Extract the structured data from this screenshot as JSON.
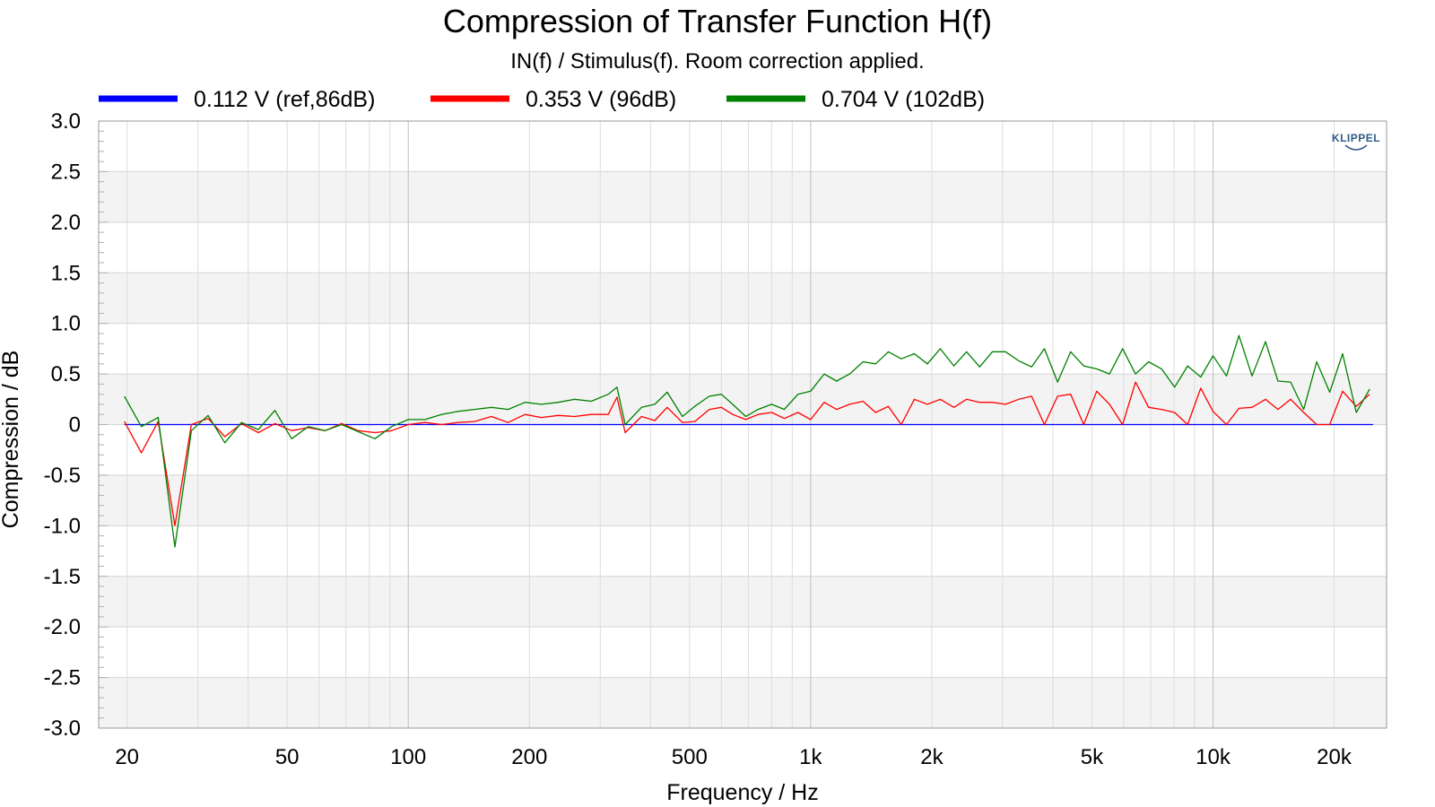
{
  "chart_data": {
    "type": "line",
    "title": "Compression of Transfer Function H(f)",
    "subtitle": "IN(f) / Stimulus(f). Room correction applied.",
    "xlabel": "Frequency / Hz",
    "ylabel": "Compression / dB",
    "xscale": "log",
    "xlim": [
      17,
      27000
    ],
    "ylim": [
      -3.0,
      3.0
    ],
    "grid": true,
    "legend_position": "top",
    "logo": "KLIPPEL",
    "x_ticks": [
      20,
      50,
      100,
      200,
      500,
      1000,
      2000,
      5000,
      10000,
      20000
    ],
    "x_tick_labels": [
      "20",
      "50",
      "100",
      "200",
      "500",
      "1k",
      "2k",
      "5k",
      "10k",
      "20k"
    ],
    "y_ticks": [
      3.0,
      2.5,
      2.0,
      1.5,
      1.0,
      0.5,
      0,
      -0.5,
      -1.0,
      -1.5,
      -2.0,
      -2.5,
      -3.0
    ],
    "y_tick_labels": [
      "3.0",
      "2.5",
      "2.0",
      "1.5",
      "1.0",
      "0.5",
      "0",
      "-0.5",
      "-1.0",
      "-1.5",
      "-2.0",
      "-2.5",
      "-3.0"
    ],
    "series": [
      {
        "name": "0.112 V (ref,86dB)",
        "color": "#0000ff",
        "x": [
          19.7,
          25000
        ],
        "y": [
          0,
          0
        ]
      },
      {
        "name": "0.353 V (96dB)",
        "color": "#ff0000",
        "x": [
          19.7,
          21.7,
          23.9,
          26.3,
          28.9,
          31.8,
          35.0,
          38.5,
          42.4,
          46.6,
          51.3,
          56.4,
          62.1,
          68.3,
          75.1,
          82.6,
          90.9,
          100,
          110,
          121,
          133,
          146,
          161,
          177,
          195,
          214,
          236,
          259,
          285,
          314,
          330,
          346,
          380,
          410,
          440,
          480,
          515,
          560,
          600,
          640,
          690,
          740,
          800,
          860,
          930,
          1000,
          1080,
          1160,
          1250,
          1350,
          1450,
          1560,
          1680,
          1810,
          1950,
          2100,
          2270,
          2440,
          2630,
          2830,
          3050,
          3290,
          3540,
          3810,
          4110,
          4430,
          4770,
          5140,
          5530,
          5960,
          6420,
          6920,
          7450,
          8030,
          8650,
          9320,
          10000,
          10800,
          11600,
          12500,
          13500,
          14500,
          15600,
          16800,
          18100,
          19500,
          21000,
          22700,
          24500
        ],
        "y": [
          0.03,
          -0.28,
          0.03,
          -1.0,
          0.0,
          0.06,
          -0.12,
          0.01,
          -0.08,
          0.01,
          -0.06,
          -0.03,
          -0.06,
          0.01,
          -0.06,
          -0.08,
          -0.06,
          0.0,
          0.02,
          0.0,
          0.02,
          0.03,
          0.08,
          0.02,
          0.1,
          0.07,
          0.09,
          0.08,
          0.1,
          0.1,
          0.27,
          -0.08,
          0.08,
          0.04,
          0.17,
          0.02,
          0.03,
          0.15,
          0.17,
          0.1,
          0.05,
          0.1,
          0.12,
          0.06,
          0.12,
          0.05,
          0.22,
          0.15,
          0.2,
          0.23,
          0.12,
          0.18,
          0.0,
          0.25,
          0.2,
          0.25,
          0.17,
          0.25,
          0.22,
          0.22,
          0.2,
          0.25,
          0.28,
          0.0,
          0.28,
          0.3,
          0.0,
          0.33,
          0.2,
          0.0,
          0.42,
          0.17,
          0.15,
          0.12,
          0.0,
          0.36,
          0.13,
          0.0,
          0.16,
          0.17,
          0.25,
          0.15,
          0.25,
          0.12,
          0.0,
          0.0,
          0.33,
          0.18,
          0.3
        ]
      },
      {
        "name": "0.704 V (102dB)",
        "color": "#008000",
        "x": [
          19.7,
          21.7,
          23.9,
          26.3,
          28.9,
          31.8,
          35.0,
          38.5,
          42.4,
          46.6,
          51.3,
          56.4,
          62.1,
          68.3,
          75.1,
          82.6,
          90.9,
          100,
          110,
          121,
          133,
          146,
          161,
          177,
          195,
          214,
          236,
          259,
          285,
          314,
          330,
          346,
          380,
          410,
          440,
          480,
          515,
          560,
          600,
          640,
          690,
          740,
          800,
          860,
          930,
          1000,
          1080,
          1160,
          1250,
          1350,
          1450,
          1560,
          1680,
          1810,
          1950,
          2100,
          2270,
          2440,
          2630,
          2830,
          3050,
          3290,
          3540,
          3810,
          4110,
          4430,
          4770,
          5140,
          5530,
          5960,
          6420,
          6920,
          7450,
          8030,
          8650,
          9320,
          10000,
          10800,
          11600,
          12500,
          13500,
          14500,
          15600,
          16800,
          18100,
          19500,
          21000,
          22700,
          24500
        ],
        "y": [
          0.28,
          -0.02,
          0.07,
          -1.21,
          -0.06,
          0.09,
          -0.18,
          0.02,
          -0.05,
          0.14,
          -0.14,
          -0.02,
          -0.06,
          0.0,
          -0.07,
          -0.14,
          -0.02,
          0.05,
          0.05,
          0.1,
          0.13,
          0.15,
          0.17,
          0.15,
          0.22,
          0.2,
          0.22,
          0.25,
          0.23,
          0.3,
          0.37,
          0.0,
          0.17,
          0.2,
          0.32,
          0.08,
          0.18,
          0.28,
          0.3,
          0.2,
          0.08,
          0.15,
          0.2,
          0.15,
          0.3,
          0.33,
          0.5,
          0.43,
          0.5,
          0.62,
          0.6,
          0.72,
          0.65,
          0.7,
          0.6,
          0.75,
          0.58,
          0.72,
          0.57,
          0.72,
          0.72,
          0.63,
          0.57,
          0.75,
          0.42,
          0.72,
          0.58,
          0.55,
          0.5,
          0.75,
          0.5,
          0.62,
          0.55,
          0.37,
          0.58,
          0.47,
          0.68,
          0.48,
          0.88,
          0.48,
          0.82,
          0.43,
          0.42,
          0.15,
          0.62,
          0.32,
          0.7,
          0.12,
          0.35
        ]
      }
    ]
  }
}
